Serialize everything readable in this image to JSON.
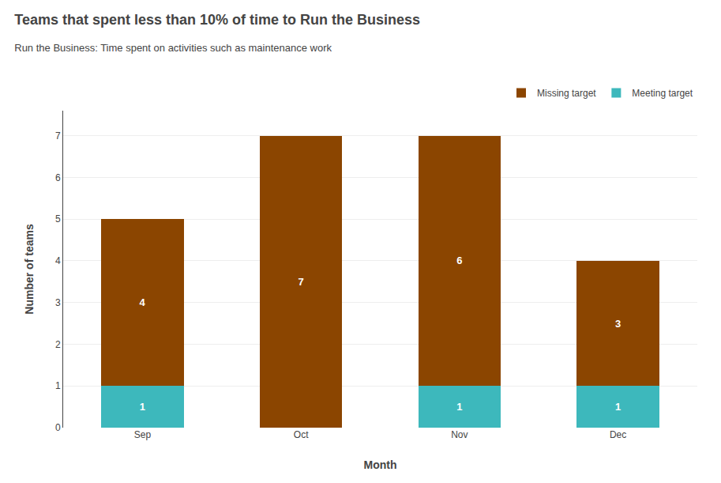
{
  "chart_data": {
    "type": "bar",
    "stacked": true,
    "title": "Teams that spent less than 10% of time to Run the Business",
    "subtitle": "Run the Business: Time spent on activities such as maintenance work",
    "xlabel": "Month",
    "ylabel": "Number of teams",
    "categories": [
      "Sep",
      "Oct",
      "Nov",
      "Dec"
    ],
    "series": [
      {
        "name": "Meeting target",
        "color": "#3db8bc",
        "values": [
          1,
          0,
          1,
          1
        ]
      },
      {
        "name": "Missing target",
        "color": "#8B4500",
        "values": [
          4,
          7,
          6,
          3
        ]
      }
    ],
    "ylim": [
      0,
      7.6
    ],
    "yticks": [
      0,
      1,
      2,
      3,
      4,
      5,
      6,
      7
    ],
    "grid": "y",
    "legend": "upper right",
    "data_labels": true
  }
}
